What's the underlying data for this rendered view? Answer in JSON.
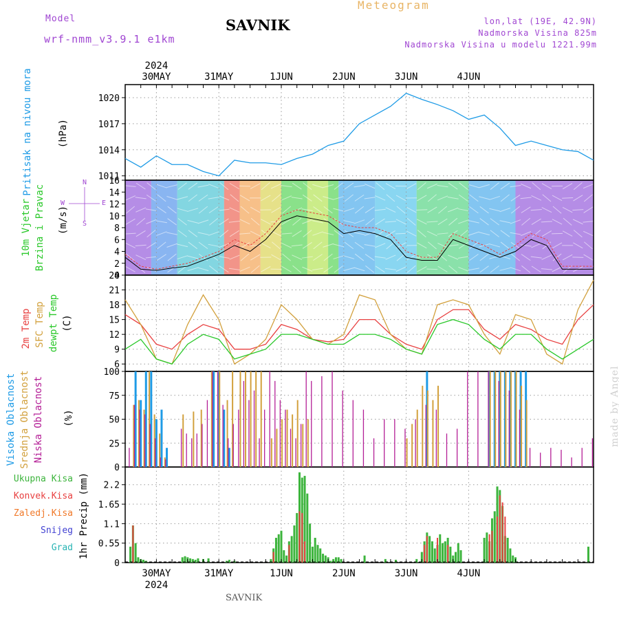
{
  "header": {
    "model_label": "Model",
    "model_name": "wrf-nmm_v3.9.1 e1km",
    "station": "SAVNIK",
    "product": "Meteogram",
    "coords": "lon,lat (19E, 42.9N)",
    "elevation": "Nadmorska Visina 825m",
    "model_elevation": "Nadmorska Visina u modelu 1221.99m"
  },
  "footer": {
    "station": "SAVNIK",
    "credit": "made by Angel"
  },
  "colors": {
    "pressure": "#1e9be6",
    "temp2m": "#e84040",
    "sfc": "#d2a03c",
    "dew": "#2ac82a",
    "high": "#1e9be6",
    "mid": "#d2a03c",
    "low": "#b41e96",
    "total": "#3cb43c",
    "conv": "#e84040",
    "snow": "#4040d2",
    "grad": "#28b4b4",
    "speed": "#000000",
    "gust": "#e84040"
  },
  "chart_data": [
    {
      "type": "line",
      "id": "pressure",
      "ylabel": [
        "Pritisak na nivou mora",
        "(hPa)"
      ],
      "yticks": [
        1011,
        1014,
        1017,
        1020
      ],
      "ylim": [
        1010.5,
        1021.5
      ],
      "series": [
        {
          "x": [
            0,
            6,
            12,
            18,
            24,
            30,
            36,
            42,
            48,
            54,
            60,
            66,
            72,
            78,
            84,
            90,
            96,
            102,
            108,
            114,
            120,
            126,
            132,
            138,
            144,
            150,
            156,
            162,
            168,
            174,
            180
          ],
          "values": [
            1013,
            1012,
            1013.3,
            1012.3,
            1012.3,
            1011.5,
            1011,
            1012.8,
            1012.5,
            1012.5,
            1012.3,
            1013,
            1013.5,
            1014.5,
            1015,
            1017,
            1018,
            1019,
            1020.5,
            1019.8,
            1019.2,
            1018.5,
            1017.5,
            1018,
            1016.5,
            1014.5,
            1015,
            1014.5,
            1014,
            1013.8,
            1012.8
          ]
        }
      ]
    },
    {
      "type": "line",
      "id": "wind",
      "ylabel": [
        "10m Vjetar",
        "Brzina i Pravac",
        "(m/s)"
      ],
      "legend": [
        "N",
        "W",
        "E",
        "S"
      ],
      "yticks": [
        0,
        2,
        4,
        6,
        8,
        10,
        12,
        14,
        16
      ],
      "ylim": [
        0,
        16
      ],
      "series": [
        {
          "x": [
            0,
            6,
            12,
            18,
            24,
            30,
            36,
            42,
            48,
            54,
            60,
            66,
            72,
            78,
            84,
            90,
            96,
            102,
            108,
            114,
            120,
            126,
            132,
            138,
            144,
            150,
            156,
            162,
            168,
            174,
            180
          ],
          "values": [
            3,
            1,
            0.8,
            1.2,
            1.5,
            2.5,
            3.5,
            5,
            4,
            6,
            9,
            10,
            9.5,
            9,
            7,
            7.5,
            7,
            6,
            3,
            2.5,
            2.5,
            6,
            5,
            4,
            3,
            4,
            6,
            5,
            1,
            1,
            1
          ]
        },
        {
          "x": [
            0,
            6,
            12,
            18,
            24,
            30,
            36,
            42,
            48,
            54,
            60,
            66,
            72,
            78,
            84,
            90,
            96,
            102,
            108,
            114,
            120,
            126,
            132,
            138,
            144,
            150,
            156,
            162,
            168,
            174,
            180
          ],
          "values": [
            3.5,
            1.5,
            1,
            1.5,
            2,
            3,
            4,
            6,
            5,
            7,
            10,
            11,
            10.5,
            10,
            8.5,
            8,
            8,
            7,
            4,
            3,
            3,
            7,
            6,
            5,
            3.5,
            5,
            7,
            6,
            1.5,
            1.5,
            1.5
          ]
        }
      ]
    },
    {
      "type": "line",
      "id": "temperature",
      "ylabel": [
        "2m Temp",
        "SFC Temp",
        "dewpt Temp",
        "(C)"
      ],
      "yticks": [
        6,
        9,
        12,
        15,
        18,
        21,
        24
      ],
      "ylim": [
        4.5,
        24
      ],
      "series": [
        {
          "name": "2m Temp",
          "x": [
            0,
            6,
            12,
            18,
            24,
            30,
            36,
            42,
            48,
            54,
            60,
            66,
            72,
            78,
            84,
            90,
            96,
            102,
            108,
            114,
            120,
            126,
            132,
            138,
            144,
            150,
            156,
            162,
            168,
            174,
            180
          ],
          "values": [
            16,
            14,
            10,
            9,
            12,
            14,
            13,
            9,
            9,
            10,
            14,
            13,
            11,
            10.5,
            11,
            15,
            15,
            12,
            10,
            9,
            15,
            17,
            17,
            13,
            11,
            14,
            13,
            11,
            10,
            15,
            18
          ]
        },
        {
          "name": "SFC Temp",
          "x": [
            0,
            6,
            12,
            18,
            24,
            30,
            36,
            42,
            48,
            54,
            60,
            66,
            72,
            78,
            84,
            90,
            96,
            102,
            108,
            114,
            120,
            126,
            132,
            138,
            144,
            150,
            156,
            162,
            168,
            174,
            180
          ],
          "values": [
            19,
            14,
            7,
            6,
            14,
            20,
            15,
            6,
            8,
            11,
            18,
            15,
            11,
            10,
            12,
            20,
            19,
            12,
            9,
            8,
            18,
            19,
            18,
            12,
            8,
            16,
            15,
            8,
            6,
            17,
            23
          ]
        },
        {
          "name": "dewpt Temp",
          "x": [
            0,
            6,
            12,
            18,
            24,
            30,
            36,
            42,
            48,
            54,
            60,
            66,
            72,
            78,
            84,
            90,
            96,
            102,
            108,
            114,
            120,
            126,
            132,
            138,
            144,
            150,
            156,
            162,
            168,
            174,
            180
          ],
          "values": [
            9,
            11,
            7,
            6,
            10,
            12,
            11,
            7,
            8,
            9,
            12,
            12,
            11,
            10,
            10,
            12,
            12,
            11,
            9,
            8,
            14,
            15,
            14,
            11,
            9,
            12,
            12,
            9,
            7,
            9,
            11
          ]
        }
      ]
    },
    {
      "type": "bar",
      "id": "clouds",
      "ylabel": [
        "Visoka Oblacnost",
        "Srednja Oblacnost",
        "Niska Oblacnost",
        "(%)"
      ],
      "yticks": [
        0,
        25,
        50,
        75,
        100
      ],
      "ylim": [
        0,
        100
      ],
      "series": [
        {
          "name": "Visoka Oblacnost",
          "x": [
            4,
            6,
            8,
            10,
            12,
            14,
            16,
            34,
            36,
            38,
            40,
            116,
            140,
            142,
            144,
            146,
            148,
            150,
            152,
            154
          ],
          "values": [
            100,
            70,
            100,
            100,
            50,
            60,
            20,
            100,
            100,
            60,
            20,
            100,
            100,
            100,
            100,
            100,
            100,
            100,
            100,
            100
          ]
        },
        {
          "name": "Srednja Oblacnost",
          "x": [
            3,
            5,
            7,
            9,
            11,
            13,
            15,
            22,
            26,
            29,
            33,
            36,
            39,
            41,
            44,
            46,
            48,
            50,
            52,
            56,
            58,
            60,
            62,
            64,
            66,
            68,
            70,
            108,
            110,
            112,
            114,
            116,
            118,
            120,
            140,
            142,
            144,
            146,
            148,
            150,
            152,
            154
          ],
          "values": [
            65,
            70,
            60,
            100,
            55,
            35,
            10,
            55,
            58,
            60,
            100,
            100,
            70,
            100,
            100,
            100,
            100,
            100,
            100,
            30,
            40,
            50,
            60,
            55,
            70,
            45,
            50,
            30,
            45,
            60,
            85,
            80,
            70,
            85,
            100,
            100,
            100,
            100,
            100,
            100,
            85,
            70
          ]
        },
        {
          "name": "Niska Oblacnost",
          "x": [
            1,
            3,
            5,
            7,
            9,
            11,
            13,
            15,
            21,
            23,
            25,
            27,
            29,
            31,
            33,
            35,
            37,
            39,
            41,
            43,
            45,
            47,
            49,
            51,
            53,
            55,
            57,
            59,
            61,
            63,
            65,
            67,
            69,
            71,
            75,
            79,
            83,
            87,
            91,
            95,
            99,
            103,
            107,
            111,
            115,
            119,
            123,
            127,
            131,
            135,
            139,
            143,
            147,
            151,
            155,
            159,
            163,
            167,
            171,
            175,
            179
          ],
          "values": [
            20,
            65,
            60,
            55,
            45,
            30,
            10,
            8,
            40,
            35,
            30,
            35,
            45,
            70,
            100,
            100,
            65,
            30,
            45,
            60,
            90,
            70,
            80,
            30,
            60,
            100,
            90,
            70,
            60,
            40,
            30,
            45,
            100,
            90,
            95,
            100,
            80,
            70,
            60,
            30,
            50,
            50,
            40,
            50,
            65,
            60,
            35,
            40,
            100,
            100,
            100,
            90,
            80,
            60,
            20,
            15,
            20,
            18,
            10,
            20,
            30
          ]
        }
      ]
    },
    {
      "type": "bar",
      "id": "precip",
      "ylabel": [
        "1hr Precip (mm)"
      ],
      "legend": [
        "Ukupna Kisa",
        "Konvek.Kisa",
        "Zaledj.Kisa",
        "Snijeg",
        "Grad"
      ],
      "yticks": [
        0,
        0.55,
        1.1,
        1.65,
        2.2
      ],
      "ylim": [
        0,
        2.7
      ],
      "series": [
        {
          "name": "Ukupna Kisa",
          "x": [
            2,
            3,
            4,
            5,
            6,
            7,
            8,
            22,
            23,
            24,
            25,
            26,
            27,
            28,
            30,
            32,
            39,
            40,
            42,
            56,
            57,
            58,
            59,
            60,
            61,
            62,
            63,
            64,
            65,
            66,
            67,
            68,
            69,
            70,
            71,
            72,
            73,
            74,
            75,
            76,
            77,
            78,
            79,
            80,
            81,
            82,
            83,
            92,
            100,
            104,
            112,
            114,
            115,
            116,
            117,
            118,
            119,
            120,
            121,
            122,
            123,
            124,
            125,
            126,
            127,
            128,
            129,
            138,
            139,
            140,
            141,
            142,
            143,
            144,
            145,
            146,
            147,
            148,
            149,
            150,
            178
          ],
          "values": [
            0.45,
            1.05,
            0.55,
            0.15,
            0.1,
            0.08,
            0.05,
            0.15,
            0.18,
            0.15,
            0.12,
            0.1,
            0.08,
            0.12,
            0.1,
            0.12,
            0.05,
            0.08,
            0.05,
            0.1,
            0.4,
            0.7,
            0.8,
            0.9,
            0.35,
            0.2,
            0.6,
            0.75,
            1.05,
            1.4,
            2.55,
            2.4,
            2.45,
            1.95,
            1.1,
            0.45,
            0.7,
            0.5,
            0.4,
            0.25,
            0.2,
            0.15,
            0.05,
            0.1,
            0.15,
            0.15,
            0.1,
            0.2,
            0.1,
            0.08,
            0.1,
            0.3,
            0.6,
            0.85,
            0.75,
            0.6,
            0.4,
            0.5,
            0.8,
            0.55,
            0.6,
            0.7,
            0.45,
            0.2,
            0.3,
            0.55,
            0.35,
            0.7,
            0.85,
            0.6,
            1.25,
            1.45,
            2.15,
            2.05,
            1.6,
            0.75,
            0.7,
            0.4,
            0.2,
            0.15,
            0.45
          ]
        },
        {
          "name": "Konvek.Kisa",
          "x": [
            3,
            57,
            63,
            67,
            68,
            69,
            115,
            116,
            120,
            124,
            140,
            141,
            143,
            144,
            145,
            146
          ],
          "values": [
            1.05,
            0.3,
            0.5,
            1.45,
            1.4,
            0.6,
            0.5,
            0.75,
            0.7,
            0.5,
            0.8,
            0.9,
            1.3,
            1.9,
            1.7,
            1.3
          ]
        }
      ]
    }
  ],
  "x_axis": {
    "year": "2024",
    "days": [
      {
        "label": "30MAY",
        "x": 12
      },
      {
        "label": "31MAY",
        "x": 36
      },
      {
        "label": "1JUN",
        "x": 60
      },
      {
        "label": "2JUN",
        "x": 84
      },
      {
        "label": "3JUN",
        "x": 108
      },
      {
        "label": "4JUN",
        "x": 132
      }
    ],
    "range": [
      0,
      180
    ]
  }
}
